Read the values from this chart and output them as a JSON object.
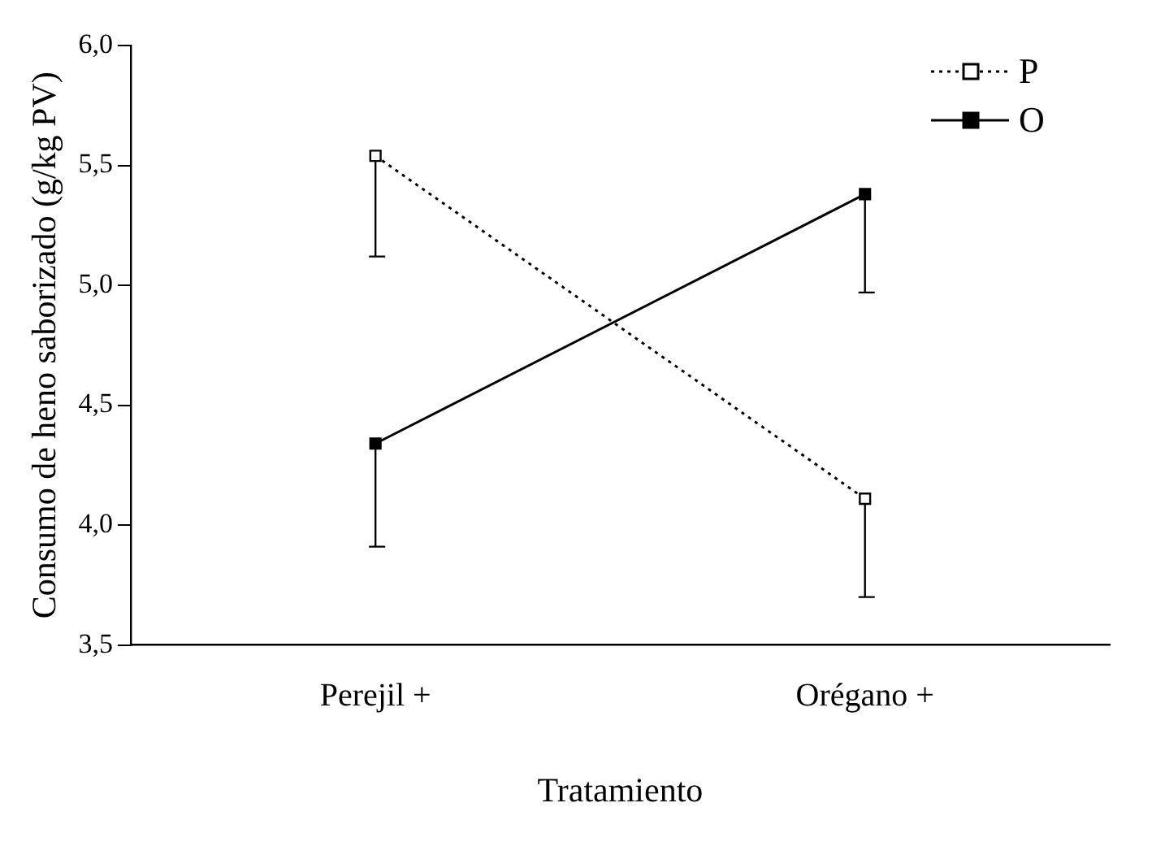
{
  "chart_data": {
    "type": "line",
    "xlabel": "Tratamiento",
    "ylabel": "Consumo de heno saborizado (g/kg PV)",
    "categories": [
      "Perejil +",
      "Orégano +"
    ],
    "series": [
      {
        "name": "P",
        "color": "#000000",
        "values": [
          5.54,
          4.11
        ],
        "errors": [
          [
            5.12,
            5.54
          ],
          [
            3.7,
            4.11
          ]
        ],
        "line_style": "dotted",
        "marker": "square"
      },
      {
        "name": "O",
        "color": "#000000",
        "values": [
          4.34,
          5.38
        ],
        "errors": [
          [
            3.91,
            4.34
          ],
          [
            4.97,
            5.38
          ]
        ],
        "line_style": "solid",
        "marker": "square"
      }
    ],
    "ylim": [
      3.5,
      6.0
    ],
    "yticks": [
      {
        "value": 3.5,
        "label": "3,5"
      },
      {
        "value": 4.0,
        "label": "4,0"
      },
      {
        "value": 4.5,
        "label": "4,5"
      },
      {
        "value": 5.0,
        "label": "5,0"
      },
      {
        "value": 5.5,
        "label": "5,5"
      },
      {
        "value": 6.0,
        "label": "6,0"
      }
    ],
    "grid": false,
    "legend": "top right"
  }
}
